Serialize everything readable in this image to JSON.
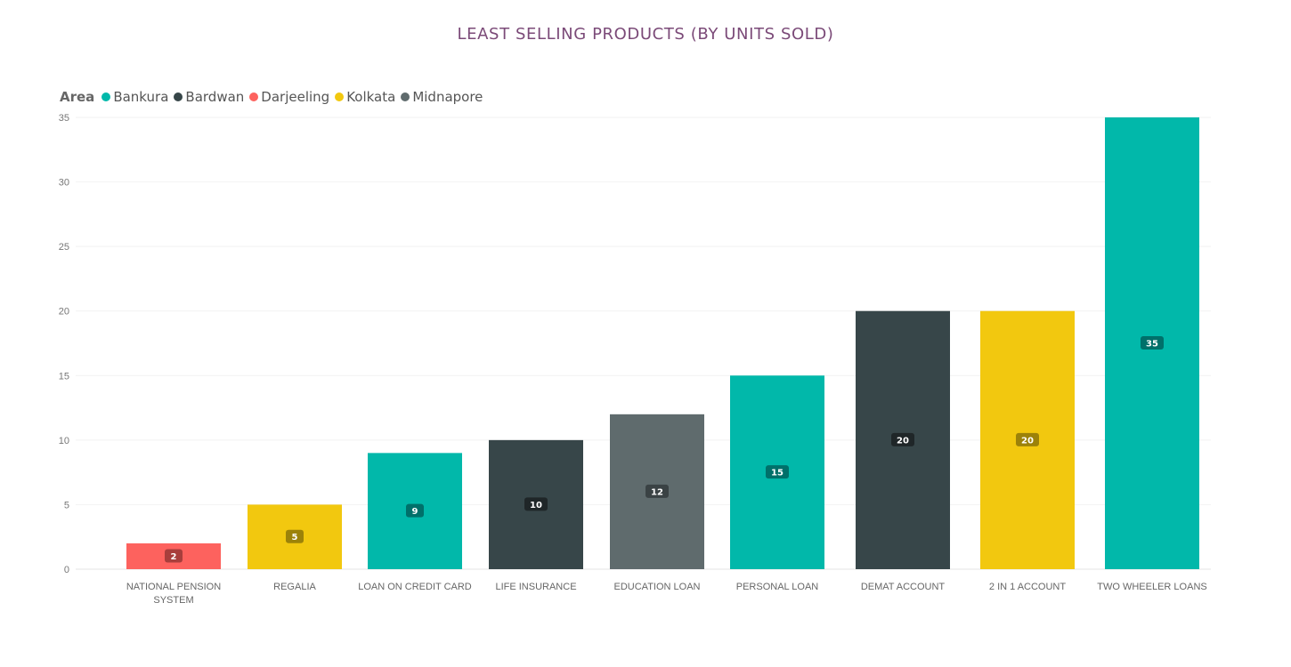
{
  "chart_data": {
    "type": "bar",
    "title": "LEAST SELLING PRODUCTS (BY UNITS SOLD)",
    "xlabel": "",
    "ylabel": "",
    "ylim": [
      0,
      35
    ],
    "yticks": [
      0,
      5,
      10,
      15,
      20,
      25,
      30,
      35
    ],
    "grid": true,
    "legend": {
      "title": "Area",
      "position": "top-left",
      "entries": [
        {
          "name": "Bankura",
          "color": "#01b8aa"
        },
        {
          "name": "Bardwan",
          "color": "#374649"
        },
        {
          "name": "Darjeeling",
          "color": "#fd625e"
        },
        {
          "name": "Kolkata",
          "color": "#f2c80f"
        },
        {
          "name": "Midnapore",
          "color": "#5f6b6d"
        }
      ]
    },
    "categories": [
      [
        "NATIONAL PENSION",
        "SYSTEM"
      ],
      [
        "REGALIA"
      ],
      [
        "LOAN ON CREDIT CARD"
      ],
      [
        "LIFE INSURANCE"
      ],
      [
        "EDUCATION LOAN"
      ],
      [
        "PERSONAL LOAN"
      ],
      [
        "DEMAT ACCOUNT"
      ],
      [
        "2 IN 1 ACCOUNT"
      ],
      [
        "TWO WHEELER LOANS"
      ]
    ],
    "values": [
      2,
      5,
      9,
      10,
      12,
      15,
      20,
      20,
      35
    ],
    "areas": [
      "Darjeeling",
      "Kolkata",
      "Bankura",
      "Bardwan",
      "Midnapore",
      "Bankura",
      "Bardwan",
      "Kolkata",
      "Bankura"
    ],
    "data_labels": [
      "2",
      "5",
      "9",
      "10",
      "12",
      "15",
      "20",
      "20",
      "35"
    ]
  }
}
